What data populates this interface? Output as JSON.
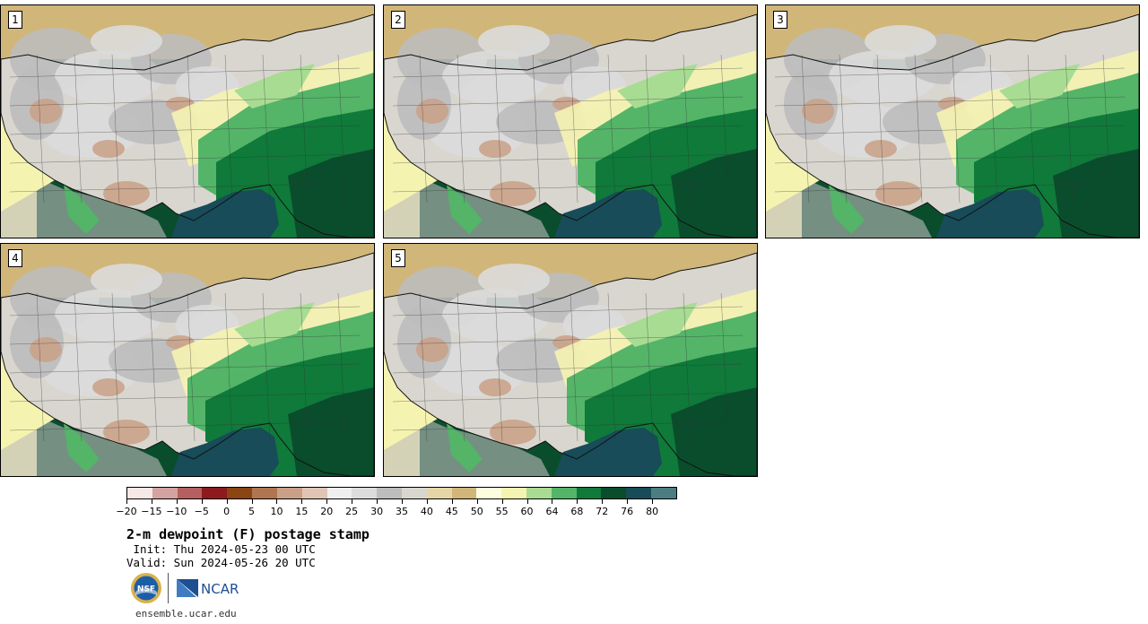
{
  "panels": [
    {
      "label": "1"
    },
    {
      "label": "2"
    },
    {
      "label": "3"
    },
    {
      "label": "4"
    },
    {
      "label": "5"
    }
  ],
  "colorbar": {
    "colors": [
      "#f5e8e6",
      "#d4a2a0",
      "#b55f60",
      "#8c1a1f",
      "#8b4513",
      "#b07652",
      "#c9a086",
      "#e0c5b4",
      "#efefef",
      "#dcdcdc",
      "#bdbdbd",
      "#d9d6cf",
      "#e6d6a7",
      "#d1b679",
      "#fcfcdf",
      "#f5f3b0",
      "#a8dc93",
      "#54b468",
      "#0f7a3a",
      "#0a4d2c",
      "#174c58",
      "#4c7d80"
    ],
    "tick_labels": [
      "−20",
      "−15",
      "−10",
      "−5",
      "0",
      "5",
      "10",
      "15",
      "20",
      "25",
      "30",
      "35",
      "40",
      "45",
      "50",
      "55",
      "60",
      "64",
      "68",
      "72",
      "76",
      "80"
    ]
  },
  "text": {
    "title": "2-m dewpoint (F) postage stamp",
    "init": " Init: Thu 2024-05-23 00 UTC",
    "valid": "Valid: Sun 2024-05-26 20 UTC",
    "site": "ensemble.ucar.edu"
  },
  "logos": {
    "nsf": "NSF",
    "ncar": "NCAR"
  }
}
